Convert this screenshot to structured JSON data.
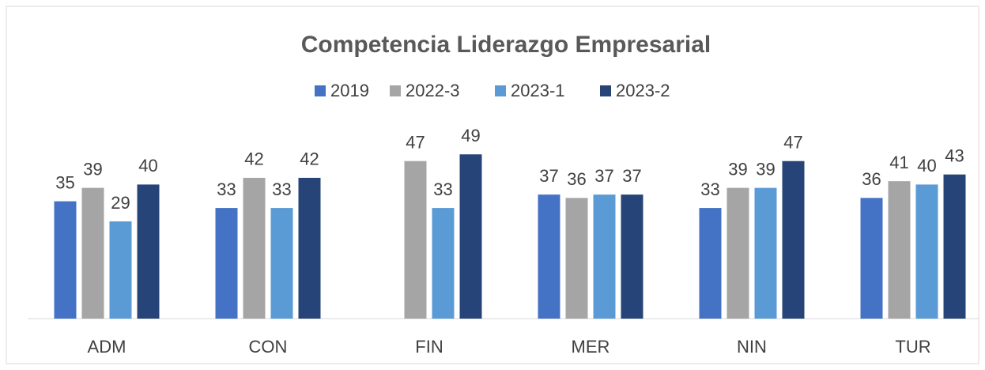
{
  "chart_data": {
    "type": "bar",
    "title": "Competencia Liderazgo Empresarial",
    "categories": [
      "ADM",
      "CON",
      "FIN",
      "MER",
      "NIN",
      "TUR"
    ],
    "series": [
      {
        "name": "2019",
        "color": "#4472c4",
        "values": [
          35,
          33,
          null,
          37,
          33,
          36
        ]
      },
      {
        "name": "2022-3",
        "color": "#a5a5a5",
        "values": [
          39,
          42,
          47,
          36,
          39,
          41
        ]
      },
      {
        "name": "2023-1",
        "color": "#5b9bd5",
        "values": [
          29,
          33,
          33,
          37,
          39,
          40
        ]
      },
      {
        "name": "2023-2",
        "color": "#264478",
        "values": [
          40,
          42,
          49,
          37,
          47,
          43
        ]
      }
    ],
    "ylim": [
      0,
      50
    ],
    "legend": "top"
  }
}
